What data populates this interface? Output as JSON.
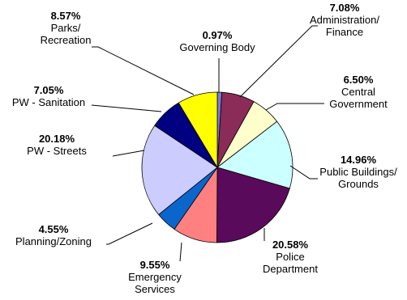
{
  "chart_data": {
    "type": "pie",
    "slices": [
      {
        "pct_label": "0.97%",
        "name_lines": [
          "Governing Body"
        ],
        "value": 0.97,
        "color": "#7B7BE0"
      },
      {
        "pct_label": "7.08%",
        "name_lines": [
          "Administration/",
          "Finance"
        ],
        "value": 7.08,
        "color": "#8B2B57"
      },
      {
        "pct_label": "6.50%",
        "name_lines": [
          "Central",
          "Government"
        ],
        "value": 6.5,
        "color": "#FFFFCC"
      },
      {
        "pct_label": "14.96%",
        "name_lines": [
          "Public Buildings/",
          "Grounds"
        ],
        "value": 14.96,
        "color": "#CCFFFF"
      },
      {
        "pct_label": "20.58%",
        "name_lines": [
          "Police",
          "Department"
        ],
        "value": 20.58,
        "color": "#5A0A5A"
      },
      {
        "pct_label": "9.55%",
        "name_lines": [
          "Emergency",
          "Services"
        ],
        "value": 9.55,
        "color": "#FF8080"
      },
      {
        "pct_label": "4.55%",
        "name_lines": [
          "Planning/Zoning"
        ],
        "value": 4.55,
        "color": "#0B66CC"
      },
      {
        "pct_label": "20.18%",
        "name_lines": [
          "PW - Streets"
        ],
        "value": 20.18,
        "color": "#CCCCFF"
      },
      {
        "pct_label": "7.05%",
        "name_lines": [
          "PW - Sanitation"
        ],
        "value": 7.05,
        "color": "#000080"
      },
      {
        "pct_label": "8.57%",
        "name_lines": [
          "Parks/",
          "Recreation"
        ],
        "value": 8.57,
        "color": "#FFFF00"
      }
    ]
  }
}
